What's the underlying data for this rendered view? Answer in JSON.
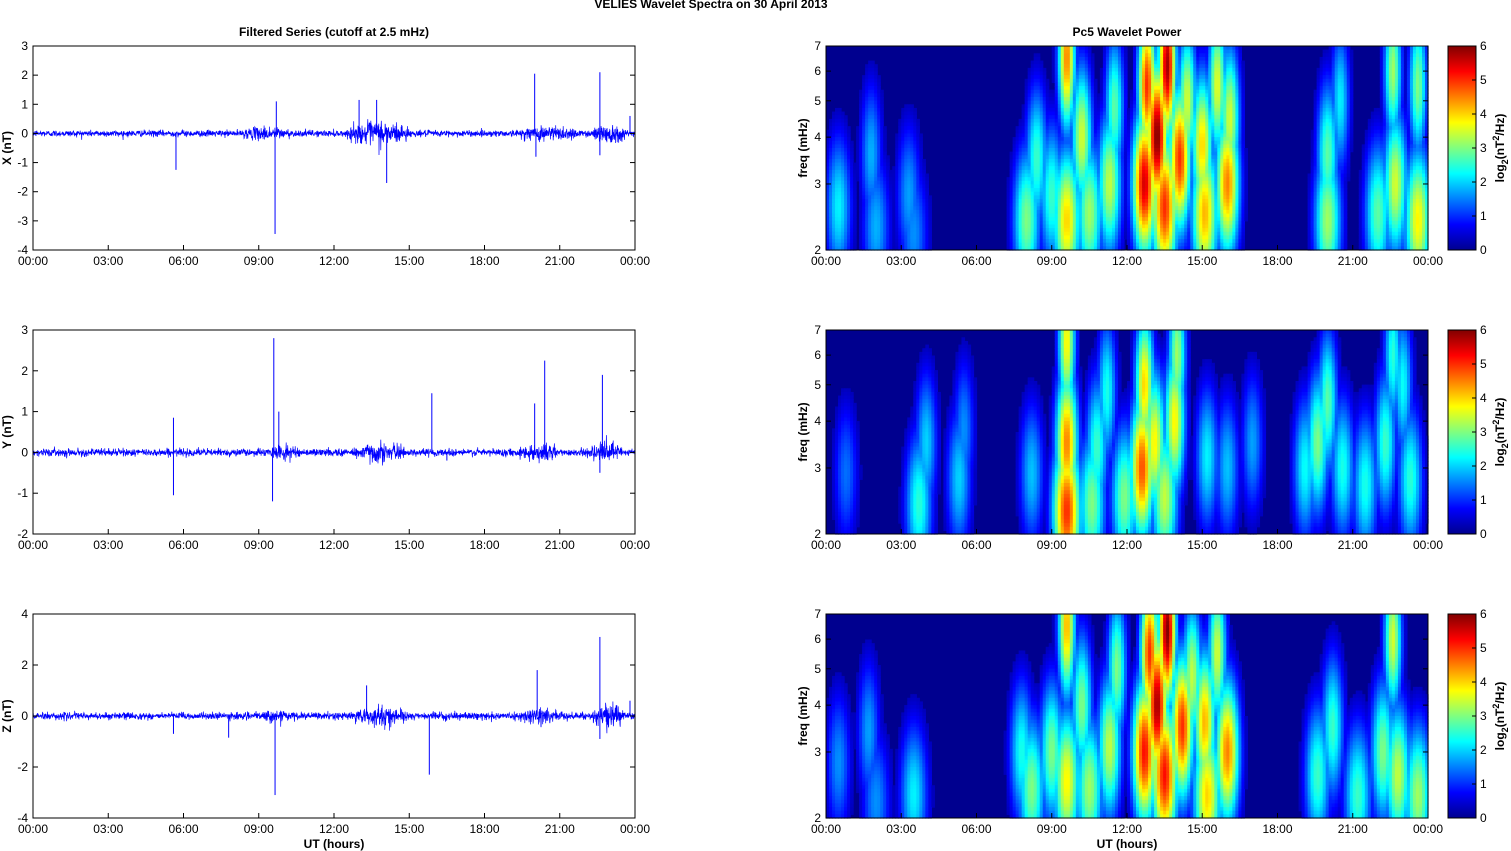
{
  "figure": {
    "title": "VELIES Wavelet Spectra on 30 April     2013",
    "left_title": "Filtered Series (cutoff at 2.5 mHz)",
    "right_title": "Pc5 Wavelet Power",
    "xlabel": "UT (hours)",
    "time_ticks": [
      "00:00",
      "03:00",
      "06:00",
      "09:00",
      "12:00",
      "15:00",
      "18:00",
      "21:00",
      "00:00"
    ],
    "freq_ylabel": "freq (mHz)",
    "freq_ticks": [
      "7",
      "6",
      "5",
      "4",
      "3",
      "2"
    ],
    "colorbar_label": "log2(nT^2/Hz)",
    "colorbar_ticks": [
      "6",
      "5",
      "4",
      "3",
      "2",
      "1",
      "0"
    ]
  },
  "colors": {
    "series_line": "#0000ff",
    "spectrogram_background": "#00008f",
    "colormap": "jet"
  },
  "chart_data": [
    {
      "type": "line",
      "name": "filtered-x",
      "title": "Filtered Series (cutoff at 2.5 mHz)",
      "ylabel": "X (nT)",
      "ylim": [
        -4,
        3
      ],
      "yticks": [
        "3",
        "2",
        "1",
        "0",
        "-1",
        "-2",
        "-3",
        "-4"
      ],
      "xlim": [
        0,
        24
      ],
      "grid": false,
      "base_noise_nT": 0.12,
      "active_intervals_hours": [
        [
          8.3,
          10.3,
          0.3
        ],
        [
          12.6,
          15.0,
          0.55
        ],
        [
          19.4,
          21.8,
          0.35
        ],
        [
          22.3,
          23.6,
          0.45
        ]
      ],
      "spikes": [
        [
          5.7,
          -1.25
        ],
        [
          9.65,
          -3.45
        ],
        [
          9.7,
          1.1
        ],
        [
          13.0,
          1.15
        ],
        [
          13.7,
          1.15
        ],
        [
          14.1,
          -1.7
        ],
        [
          20.0,
          2.05
        ],
        [
          20.05,
          -0.8
        ],
        [
          22.6,
          2.1
        ],
        [
          22.6,
          -0.75
        ],
        [
          23.8,
          0.6
        ]
      ]
    },
    {
      "type": "line",
      "name": "filtered-y",
      "ylabel": "Y (nT)",
      "ylim": [
        -2,
        3
      ],
      "yticks": [
        "3",
        "2",
        "1",
        "0",
        "-1",
        "-2"
      ],
      "xlim": [
        0,
        24
      ],
      "grid": false,
      "base_noise_nT": 0.1,
      "active_intervals_hours": [
        [
          9.5,
          10.5,
          0.25
        ],
        [
          12.7,
          14.8,
          0.3
        ],
        [
          19.4,
          21.0,
          0.3
        ],
        [
          22.3,
          23.5,
          0.35
        ]
      ],
      "spikes": [
        [
          5.6,
          -1.05
        ],
        [
          5.6,
          0.85
        ],
        [
          9.6,
          2.8
        ],
        [
          9.55,
          -1.2
        ],
        [
          9.8,
          1.0
        ],
        [
          15.9,
          1.45
        ],
        [
          16.5,
          -0.2
        ],
        [
          20.4,
          2.25
        ],
        [
          20.0,
          1.2
        ],
        [
          22.7,
          1.9
        ],
        [
          22.6,
          -0.5
        ]
      ]
    },
    {
      "type": "line",
      "name": "filtered-z",
      "ylabel": "Z (nT)",
      "ylim": [
        -4,
        4
      ],
      "yticks": [
        "4",
        "2",
        "0",
        "-2",
        "-4"
      ],
      "xlim": [
        0,
        24
      ],
      "grid": false,
      "base_noise_nT": 0.15,
      "active_intervals_hours": [
        [
          9.0,
          10.5,
          0.3
        ],
        [
          12.6,
          15.0,
          0.45
        ],
        [
          19.4,
          21.2,
          0.4
        ],
        [
          22.3,
          23.6,
          0.6
        ]
      ],
      "spikes": [
        [
          5.6,
          -0.7
        ],
        [
          7.8,
          -0.85
        ],
        [
          9.65,
          -3.1
        ],
        [
          13.3,
          1.2
        ],
        [
          15.8,
          -2.3
        ],
        [
          20.1,
          1.8
        ],
        [
          22.6,
          3.1
        ],
        [
          22.6,
          -0.9
        ],
        [
          23.8,
          0.6
        ]
      ]
    },
    {
      "type": "heatmap",
      "name": "pc5-wavelet-power-x",
      "title": "Pc5 Wavelet Power",
      "ylabel": "freq (mHz)",
      "yscale": "log",
      "ylim": [
        2,
        7
      ],
      "xlim": [
        0,
        24
      ],
      "zlim": [
        0,
        6
      ],
      "colorbar_label": "log2(nT^2/Hz)",
      "blobs": [
        [
          0.5,
          2.6,
          2.2
        ],
        [
          1.8,
          3.6,
          1.8
        ],
        [
          2.0,
          2.3,
          1.8
        ],
        [
          3.3,
          2.8,
          1.7
        ],
        [
          3.5,
          2.2,
          1.6
        ],
        [
          8.0,
          2.4,
          3.0
        ],
        [
          8.4,
          3.5,
          2.6
        ],
        [
          9.0,
          2.8,
          2.6
        ],
        [
          9.6,
          2.4,
          4.0
        ],
        [
          9.6,
          6.5,
          4.5
        ],
        [
          10.2,
          4.0,
          3.5
        ],
        [
          10.5,
          2.5,
          3.2
        ],
        [
          11.3,
          3.0,
          3.4
        ],
        [
          11.5,
          4.8,
          2.8
        ],
        [
          12.7,
          3.0,
          5.5
        ],
        [
          12.8,
          5.5,
          5.0
        ],
        [
          13.2,
          4.0,
          6.0
        ],
        [
          13.5,
          2.6,
          5.0
        ],
        [
          13.6,
          6.2,
          5.8
        ],
        [
          14.1,
          3.5,
          5.0
        ],
        [
          14.4,
          5.0,
          3.5
        ],
        [
          15.0,
          3.8,
          4.0
        ],
        [
          15.1,
          2.5,
          4.2
        ],
        [
          15.6,
          5.5,
          3.6
        ],
        [
          16.0,
          3.0,
          4.5
        ],
        [
          16.1,
          4.5,
          3.5
        ],
        [
          20.0,
          2.4,
          3.2
        ],
        [
          20.0,
          3.6,
          2.8
        ],
        [
          20.5,
          5.0,
          2.2
        ],
        [
          22.0,
          2.5,
          2.8
        ],
        [
          22.6,
          6.0,
          3.2
        ],
        [
          22.7,
          3.0,
          3.5
        ],
        [
          23.6,
          2.4,
          3.8
        ],
        [
          23.6,
          5.5,
          3.0
        ]
      ]
    },
    {
      "type": "heatmap",
      "name": "pc5-wavelet-power-y",
      "ylabel": "freq (mHz)",
      "yscale": "log",
      "ylim": [
        2,
        7
      ],
      "xlim": [
        0,
        24
      ],
      "zlim": [
        0,
        6
      ],
      "colorbar_label": "log2(nT^2/Hz)",
      "blobs": [
        [
          0.8,
          2.9,
          1.4
        ],
        [
          3.7,
          2.4,
          2.5
        ],
        [
          4.0,
          3.5,
          2.0
        ],
        [
          5.3,
          2.8,
          2.0
        ],
        [
          5.5,
          3.8,
          1.6
        ],
        [
          8.2,
          2.9,
          1.9
        ],
        [
          9.6,
          2.3,
          5.0
        ],
        [
          9.6,
          3.5,
          4.5
        ],
        [
          9.6,
          6.5,
          3.8
        ],
        [
          10.6,
          2.4,
          3.0
        ],
        [
          10.8,
          3.4,
          2.6
        ],
        [
          11.2,
          4.8,
          2.4
        ],
        [
          11.9,
          2.5,
          3.0
        ],
        [
          12.6,
          3.0,
          4.8
        ],
        [
          12.7,
          5.0,
          4.0
        ],
        [
          13.1,
          3.5,
          3.8
        ],
        [
          13.5,
          2.5,
          3.4
        ],
        [
          13.9,
          4.0,
          3.8
        ],
        [
          14.0,
          6.0,
          3.2
        ],
        [
          15.2,
          3.2,
          2.2
        ],
        [
          16.0,
          3.0,
          1.9
        ],
        [
          17.0,
          3.5,
          1.7
        ],
        [
          19.1,
          3.0,
          2.3
        ],
        [
          19.6,
          3.5,
          3.0
        ],
        [
          20.0,
          4.5,
          2.8
        ],
        [
          20.6,
          3.0,
          2.4
        ],
        [
          21.5,
          2.7,
          2.4
        ],
        [
          22.3,
          3.5,
          2.6
        ],
        [
          22.6,
          6.0,
          2.5
        ],
        [
          23.0,
          5.0,
          2.3
        ],
        [
          23.3,
          2.8,
          2.5
        ]
      ]
    },
    {
      "type": "heatmap",
      "name": "pc5-wavelet-power-z",
      "ylabel": "freq (mHz)",
      "yscale": "log",
      "ylim": [
        2,
        7
      ],
      "xlim": [
        0,
        24
      ],
      "zlim": [
        0,
        6
      ],
      "colorbar_label": "log2(nT^2/Hz)",
      "blobs": [
        [
          0.5,
          2.8,
          1.6
        ],
        [
          1.7,
          3.4,
          1.7
        ],
        [
          2.0,
          2.2,
          1.6
        ],
        [
          3.5,
          2.3,
          2.2
        ],
        [
          7.8,
          3.0,
          2.4
        ],
        [
          8.2,
          2.4,
          3.0
        ],
        [
          9.0,
          3.0,
          3.0
        ],
        [
          9.6,
          2.5,
          3.8
        ],
        [
          9.6,
          6.5,
          4.2
        ],
        [
          10.2,
          4.0,
          3.0
        ],
        [
          10.5,
          2.4,
          3.2
        ],
        [
          11.3,
          3.1,
          3.4
        ],
        [
          11.6,
          5.0,
          3.0
        ],
        [
          12.7,
          3.0,
          5.2
        ],
        [
          12.9,
          5.5,
          5.0
        ],
        [
          13.2,
          4.0,
          5.8
        ],
        [
          13.5,
          2.6,
          5.2
        ],
        [
          13.6,
          6.3,
          6.0
        ],
        [
          14.2,
          3.5,
          5.0
        ],
        [
          14.6,
          4.8,
          3.4
        ],
        [
          15.1,
          3.6,
          4.2
        ],
        [
          15.2,
          2.3,
          4.0
        ],
        [
          15.6,
          5.5,
          3.5
        ],
        [
          16.0,
          3.0,
          4.5
        ],
        [
          19.6,
          2.6,
          2.6
        ],
        [
          20.2,
          3.5,
          2.6
        ],
        [
          21.2,
          2.3,
          2.6
        ],
        [
          22.2,
          3.0,
          3.0
        ],
        [
          22.6,
          6.0,
          3.5
        ],
        [
          22.8,
          2.6,
          3.4
        ],
        [
          23.6,
          2.3,
          3.2
        ]
      ]
    }
  ]
}
